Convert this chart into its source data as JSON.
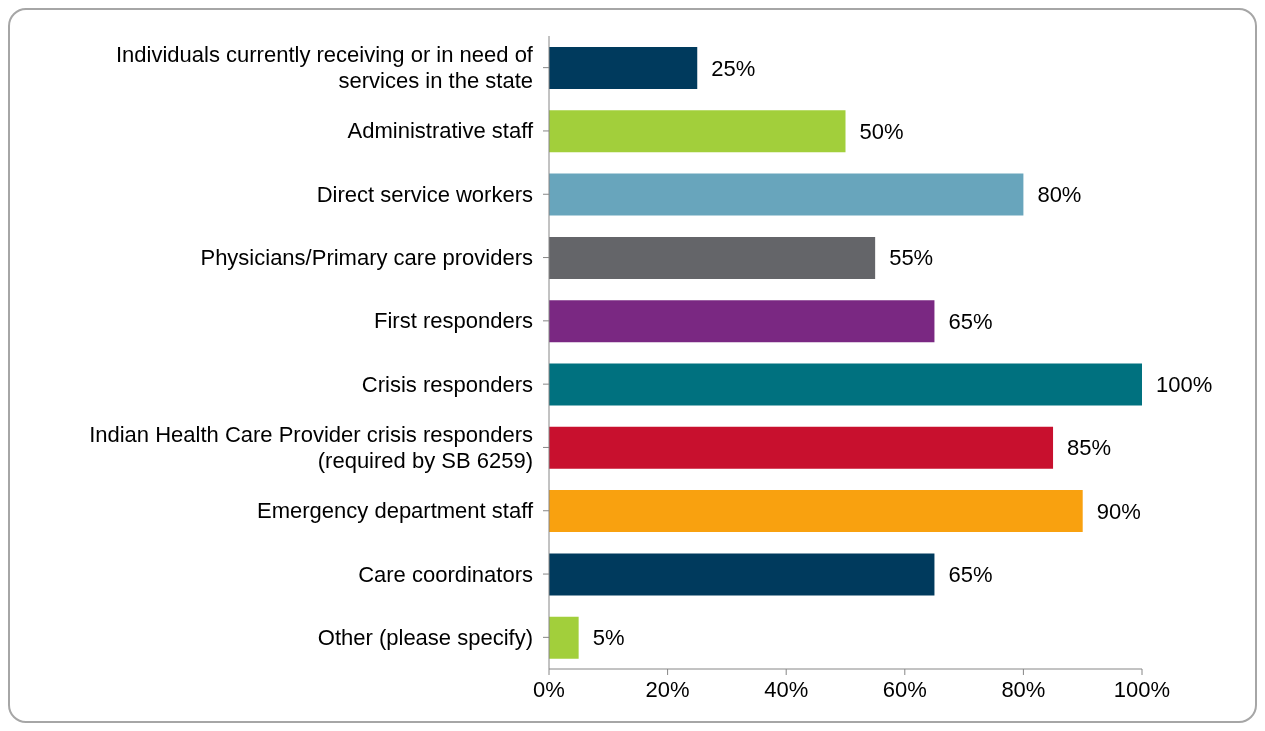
{
  "chart_data": {
    "type": "bar",
    "orientation": "horizontal",
    "categories": [
      "Individuals currently receiving or in need of services in the state",
      "Administrative staff",
      "Direct service workers",
      "Physicians/Primary care providers",
      "First responders",
      "Crisis responders",
      "Indian Health Care Provider crisis responders (required by SB 6259)",
      "Emergency department staff",
      "Care coordinators",
      "Other (please specify)"
    ],
    "values": [
      25,
      50,
      80,
      55,
      65,
      100,
      85,
      90,
      65,
      5
    ],
    "colors": [
      "#003a5d",
      "#a2cf3b",
      "#68a5bc",
      "#646569",
      "#7a2882",
      "#00717f",
      "#c8102e",
      "#f9a10f",
      "#003a5d",
      "#a2cf3b"
    ],
    "value_labels": [
      "25%",
      "50%",
      "80%",
      "55%",
      "65%",
      "100%",
      "85%",
      "90%",
      "65%",
      "5%"
    ],
    "xlim": [
      0,
      100
    ],
    "xticks": [
      {
        "value": 0,
        "label": "0%"
      },
      {
        "value": 20,
        "label": "20%"
      },
      {
        "value": 40,
        "label": "40%"
      },
      {
        "value": 60,
        "label": "60%"
      },
      {
        "value": 80,
        "label": "80%"
      },
      {
        "value": 100,
        "label": "100%"
      }
    ],
    "grid": false,
    "legend": false
  }
}
